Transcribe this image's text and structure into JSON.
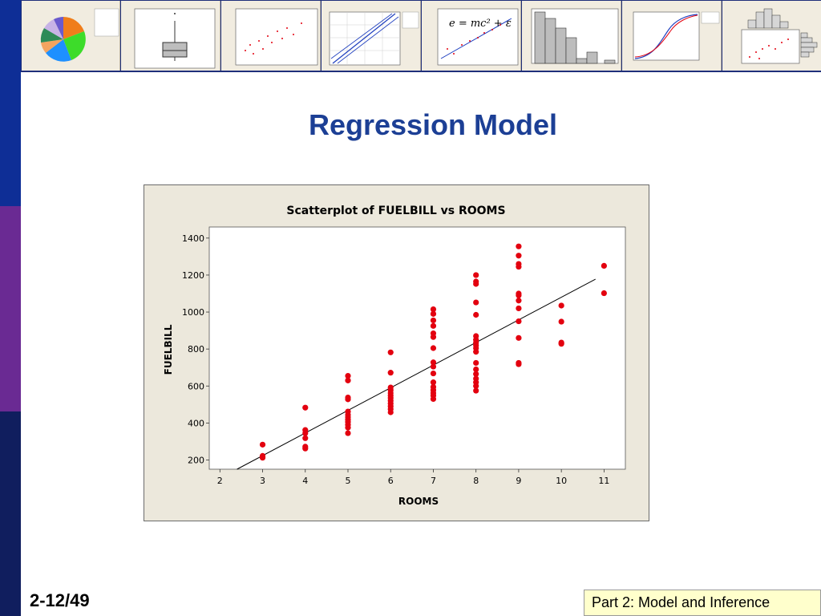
{
  "slide": {
    "title": "Regression Model",
    "page_number": "2-12/49",
    "footer": "Part 2: Model and Inference"
  },
  "colors": {
    "sidebar_top": "#0e2e96",
    "sidebar_mid": "#6a2a93",
    "sidebar_bottom": "#101e5e",
    "title": "#1c3f95",
    "points": "#e3000f"
  },
  "thumbnails": [
    {
      "kind": "pie"
    },
    {
      "kind": "boxplot"
    },
    {
      "kind": "scatter"
    },
    {
      "kind": "probability-plot"
    },
    {
      "kind": "scatter-formula",
      "formula": "e = mc² + ε"
    },
    {
      "kind": "histogram"
    },
    {
      "kind": "cdf"
    },
    {
      "kind": "marginal-plot"
    }
  ],
  "chart_data": {
    "type": "scatter",
    "title": "Scatterplot of FUELBILL vs ROOMS",
    "xlabel": "ROOMS",
    "ylabel": "FUELBILL",
    "xlim": [
      1.75,
      11.5
    ],
    "ylim": [
      150,
      1460
    ],
    "xticks": [
      2,
      3,
      4,
      5,
      6,
      7,
      8,
      9,
      10,
      11
    ],
    "yticks": [
      200,
      400,
      600,
      800,
      1000,
      1200,
      1400
    ],
    "grid": false,
    "legend": "none",
    "regression_line": {
      "x": [
        2.4,
        10.8
      ],
      "y": [
        150,
        1178
      ]
    },
    "points": [
      [
        3,
        283
      ],
      [
        3,
        222
      ],
      [
        3,
        212
      ],
      [
        4,
        483
      ],
      [
        4,
        362
      ],
      [
        4,
        345
      ],
      [
        4,
        318
      ],
      [
        4,
        272
      ],
      [
        4,
        262
      ],
      [
        5,
        655
      ],
      [
        5,
        630
      ],
      [
        5,
        538
      ],
      [
        5,
        528
      ],
      [
        5,
        462
      ],
      [
        5,
        445
      ],
      [
        5,
        432
      ],
      [
        5,
        418
      ],
      [
        5,
        405
      ],
      [
        5,
        390
      ],
      [
        5,
        375
      ],
      [
        5,
        345
      ],
      [
        6,
        782
      ],
      [
        6,
        672
      ],
      [
        6,
        592
      ],
      [
        6,
        578
      ],
      [
        6,
        562
      ],
      [
        6,
        548
      ],
      [
        6,
        535
      ],
      [
        6,
        520
      ],
      [
        6,
        505
      ],
      [
        6,
        490
      ],
      [
        6,
        475
      ],
      [
        6,
        458
      ],
      [
        7,
        1015
      ],
      [
        7,
        990
      ],
      [
        7,
        955
      ],
      [
        7,
        925
      ],
      [
        7,
        885
      ],
      [
        7,
        865
      ],
      [
        7,
        805
      ],
      [
        7,
        728
      ],
      [
        7,
        705
      ],
      [
        7,
        668
      ],
      [
        7,
        620
      ],
      [
        7,
        595
      ],
      [
        7,
        578
      ],
      [
        7,
        562
      ],
      [
        7,
        548
      ],
      [
        7,
        530
      ],
      [
        8,
        1200
      ],
      [
        8,
        1165
      ],
      [
        8,
        1152
      ],
      [
        8,
        1052
      ],
      [
        8,
        985
      ],
      [
        8,
        870
      ],
      [
        8,
        850
      ],
      [
        8,
        835
      ],
      [
        8,
        820
      ],
      [
        8,
        805
      ],
      [
        8,
        785
      ],
      [
        8,
        725
      ],
      [
        8,
        690
      ],
      [
        8,
        665
      ],
      [
        8,
        640
      ],
      [
        8,
        620
      ],
      [
        8,
        600
      ],
      [
        8,
        575
      ],
      [
        9,
        1355
      ],
      [
        9,
        1305
      ],
      [
        9,
        1260
      ],
      [
        9,
        1245
      ],
      [
        9,
        1100
      ],
      [
        9,
        1090
      ],
      [
        9,
        1062
      ],
      [
        9,
        1020
      ],
      [
        9,
        950
      ],
      [
        9,
        860
      ],
      [
        9,
        725
      ],
      [
        9,
        718
      ],
      [
        10,
        1035
      ],
      [
        10,
        948
      ],
      [
        10,
        835
      ],
      [
        10,
        828
      ],
      [
        11,
        1250
      ],
      [
        11,
        1102
      ]
    ]
  }
}
